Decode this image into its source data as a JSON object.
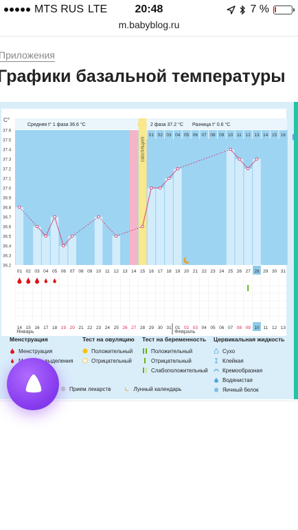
{
  "status_bar": {
    "carrier": "MTS RUS",
    "network": "LTE",
    "time": "20:48",
    "battery": "7 %",
    "battery_level": 0.07
  },
  "browser": {
    "url": "m.babyblog.ru"
  },
  "breadcrumb": "Приложения",
  "page_title": "Графики базальной температуры",
  "chart_header": {
    "phase1": "Средняя t° 1 фаза  36.6 °C",
    "phase2": "2 фаза  37.2 °C",
    "diff": "Разница t°  0.6 °C",
    "unit": "C°",
    "ovulation": "ОВУЛЯЦИЯ"
  },
  "chart_data": {
    "type": "bar",
    "ylabel": "C°",
    "ylim": [
      36.2,
      37.6
    ],
    "y_ticks": [
      "37.6",
      "37.5",
      "37.4",
      "37.3",
      "37.2",
      "37.1",
      "37.0",
      "36.9",
      "36.8",
      "36.7",
      "36.6",
      "36.5",
      "36.4",
      "36.3",
      "36.2"
    ],
    "cycle_days": [
      "01",
      "02",
      "03",
      "04",
      "05",
      "06",
      "07",
      "08",
      "09",
      "10",
      "11",
      "12",
      "13",
      "14",
      "15",
      "16",
      "17",
      "18",
      "19",
      "20",
      "21",
      "22",
      "23",
      "24",
      "25",
      "26",
      "27",
      "28",
      "29",
      "30",
      "31"
    ],
    "phase2_header_days": [
      "01",
      "02",
      "03",
      "04",
      "05",
      "06",
      "07",
      "08",
      "09",
      "10",
      "11",
      "12",
      "13",
      "14",
      "15",
      "16"
    ],
    "temperatures": [
      36.8,
      null,
      36.6,
      36.5,
      36.7,
      36.4,
      36.5,
      null,
      null,
      36.7,
      null,
      36.5,
      null,
      null,
      36.6,
      37.0,
      37.0,
      37.1,
      37.2,
      null,
      null,
      null,
      null,
      null,
      37.4,
      37.3,
      37.2,
      37.3,
      null,
      null,
      null
    ],
    "ovulation_day": "15",
    "current_day": "28",
    "highlight_day": "14",
    "menstruation_days": [
      "01",
      "02",
      "03",
      "04",
      "05"
    ],
    "ovulation_test_positive_day": "15",
    "pregnancy_test_marker_day": "27",
    "dates": [
      "14",
      "15",
      "16",
      "17",
      "18",
      "19",
      "20",
      "21",
      "22",
      "23",
      "24",
      "25",
      "26",
      "27",
      "28",
      "29",
      "30",
      "31",
      "01",
      "02",
      "03",
      "04",
      "05",
      "06",
      "07",
      "08",
      "09",
      "10",
      "11",
      "12",
      "13"
    ],
    "red_dates": [
      "19",
      "20",
      "26",
      "27",
      "02",
      "03",
      "08",
      "09"
    ],
    "today_date": "10",
    "month_labels": [
      "Январь",
      "Февраль"
    ]
  },
  "legend": {
    "menstruation": {
      "title": "Менструация",
      "items": [
        "Менструация",
        "Мажущие выделения"
      ]
    },
    "ovulation_test": {
      "title": "Тест на овуляцию",
      "items": [
        "Положительный",
        "Отрицательный"
      ]
    },
    "pregnancy_test": {
      "title": "Тест на беременность",
      "items": [
        "Положительный",
        "Отрицательный",
        "Слабоположительный"
      ]
    },
    "cervical": {
      "title": "Цервикальная жидкость",
      "items": [
        "Сухо",
        "Клейкая",
        "Кремообразная",
        "Водянистая",
        "Яичный белок"
      ]
    },
    "extra": [
      "Прием лекарств",
      "Лунный календарь"
    ]
  },
  "colors": {
    "chart_bg": "#9dd4f2",
    "bar_fill": "#d2ecfb",
    "ovulation": "#fbe78c",
    "highlight": "#f5b5c8",
    "current": "#8fcbe8",
    "line": "#d23a6f",
    "blood": "#e0151b",
    "teal": "#22c3a6"
  }
}
